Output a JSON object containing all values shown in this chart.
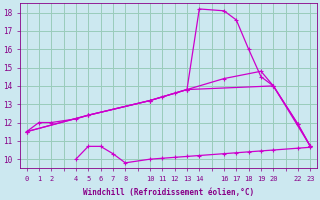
{
  "xlabel": "Windchill (Refroidissement éolien,°C)",
  "bg_color": "#cce8f0",
  "grid_color": "#99ccbb",
  "line_color": "#cc00cc",
  "line_color2": "#880088",
  "xlim": [
    -0.5,
    23.5
  ],
  "ylim": [
    9.5,
    18.5
  ],
  "xtick_positions": [
    0,
    1,
    2,
    3,
    4,
    5,
    6,
    7,
    8,
    9,
    10,
    11,
    12,
    13,
    14,
    15,
    16,
    17,
    18,
    19,
    20,
    21,
    22,
    23
  ],
  "xtick_labels": [
    "0",
    "1",
    "2",
    "",
    "4",
    "5",
    "6",
    "7",
    "8",
    "",
    "10",
    "11",
    "12",
    "13",
    "14",
    "",
    "16",
    "17",
    "18",
    "19",
    "20",
    "",
    "22",
    "23"
  ],
  "ytick_positions": [
    10,
    11,
    12,
    13,
    14,
    15,
    16,
    17,
    18
  ],
  "ytick_labels": [
    "10",
    "11",
    "12",
    "13",
    "14",
    "15",
    "16",
    "17",
    "18"
  ],
  "series1_x": [
    0,
    1,
    2,
    4,
    5,
    10,
    11,
    12,
    13,
    14,
    16,
    17,
    18,
    19,
    20,
    22,
    23
  ],
  "series1_y": [
    11.5,
    12.0,
    12.0,
    12.2,
    12.4,
    13.2,
    13.4,
    13.6,
    13.8,
    18.2,
    18.1,
    17.6,
    16.0,
    14.5,
    14.0,
    11.9,
    10.7
  ],
  "series2_x": [
    0,
    5,
    10,
    13,
    16,
    19,
    20,
    22,
    23
  ],
  "series2_y": [
    11.5,
    12.4,
    13.2,
    13.8,
    14.4,
    14.8,
    14.0,
    11.9,
    10.7
  ],
  "series3_x": [
    0,
    5,
    10,
    13,
    20,
    23
  ],
  "series3_y": [
    11.5,
    12.4,
    13.2,
    13.8,
    14.0,
    10.7
  ],
  "series4_x": [
    4,
    5,
    6,
    7,
    8,
    10,
    11,
    12,
    13,
    14,
    16,
    17,
    18,
    19,
    20,
    22,
    23
  ],
  "series4_y": [
    10.0,
    10.7,
    10.7,
    10.3,
    9.8,
    10.0,
    10.05,
    10.1,
    10.15,
    10.2,
    10.3,
    10.35,
    10.4,
    10.45,
    10.5,
    10.6,
    10.65
  ]
}
